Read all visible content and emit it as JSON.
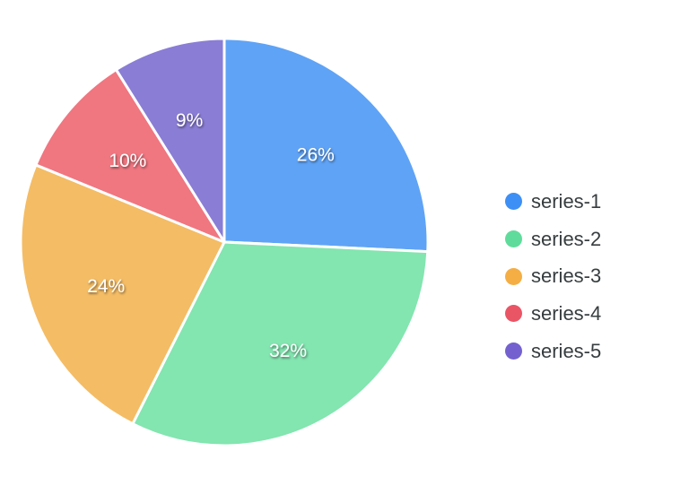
{
  "chart_data": {
    "type": "pie",
    "title": "",
    "categories": [
      "series-1",
      "series-2",
      "series-3",
      "series-4",
      "series-5"
    ],
    "values": [
      26,
      32,
      24,
      10,
      9
    ],
    "labels": [
      "26%",
      "32%",
      "24%",
      "10%",
      "9%"
    ],
    "colors": [
      "#5fa3f6",
      "#83e5b0",
      "#f4bc64",
      "#f07680",
      "#8a7dd5"
    ],
    "legend_colors": [
      "#3d8ff5",
      "#5fdc9b",
      "#f4ae44",
      "#ea5565",
      "#7461cf"
    ],
    "start_angle_deg": 0,
    "direction": "clockwise",
    "legend_position": "right"
  },
  "legend": {
    "items": [
      {
        "label": "series-1",
        "color": "#3d8ff5"
      },
      {
        "label": "series-2",
        "color": "#5fdc9b"
      },
      {
        "label": "series-3",
        "color": "#f4ae44"
      },
      {
        "label": "series-4",
        "color": "#ea5565"
      },
      {
        "label": "series-5",
        "color": "#7461cf"
      }
    ]
  }
}
